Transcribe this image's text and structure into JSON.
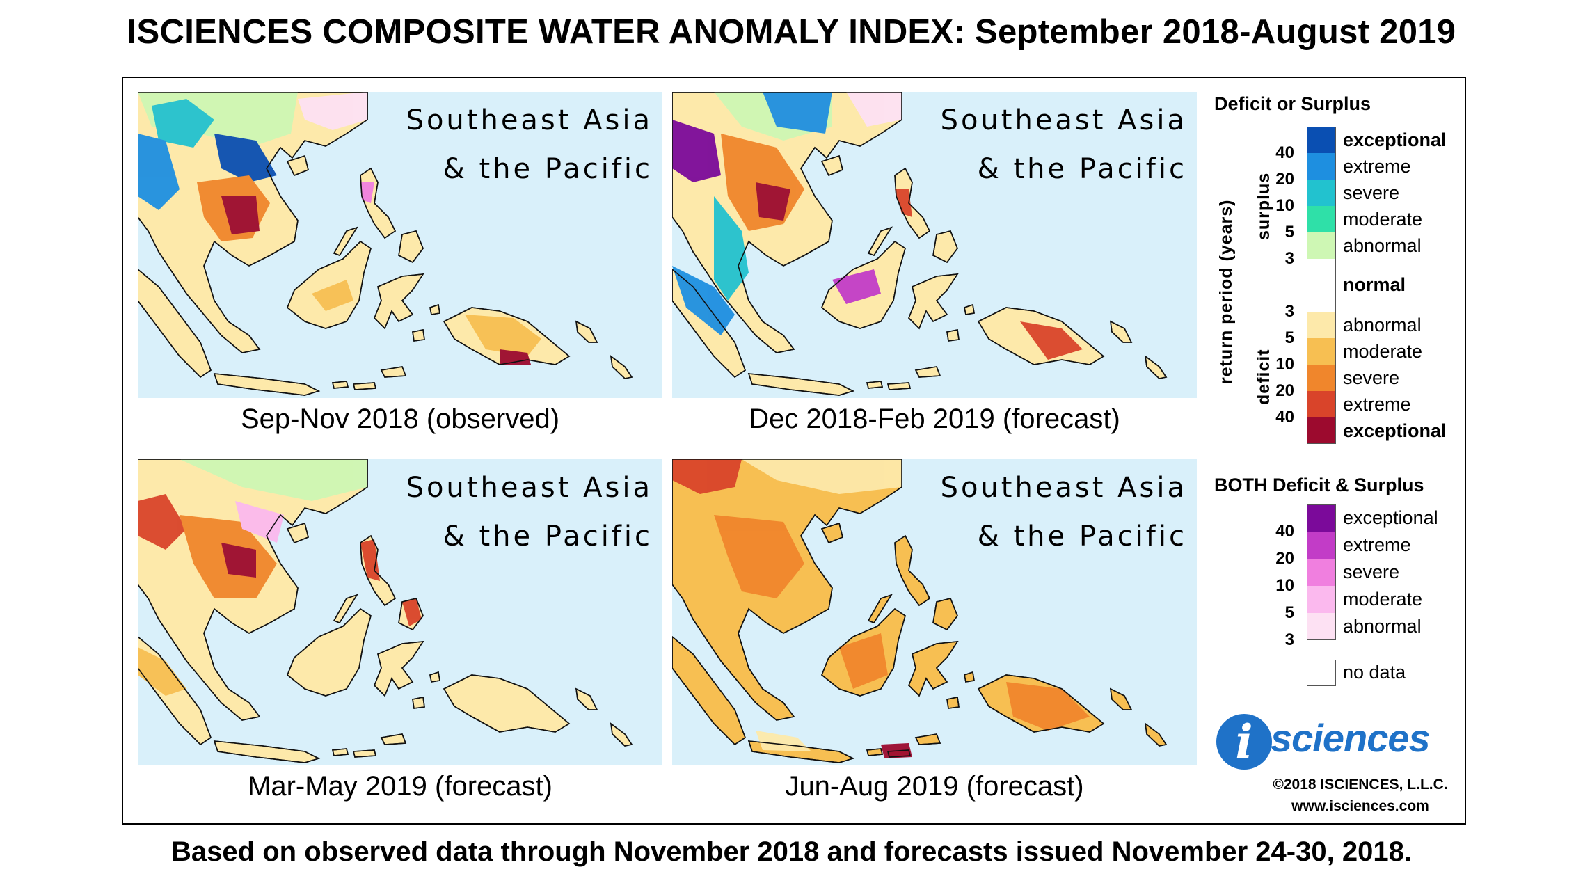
{
  "title": "ISCIENCES COMPOSITE WATER ANOMALY INDEX: September 2018-August 2019",
  "footer": "Based on observed data through November 2018 and forecasts issued November 24-30, 2018.",
  "region_line1": "Southeast Asia",
  "region_line2": "& the Pacific",
  "panels": [
    {
      "caption": "Sep-Nov 2018 (observed)"
    },
    {
      "caption": "Dec 2018-Feb 2019 (forecast)"
    },
    {
      "caption": "Mar-May 2019 (forecast)"
    },
    {
      "caption": "Jun-Aug 2019 (forecast)"
    }
  ],
  "legend": {
    "title_main": "Deficit or Surplus",
    "axis_label": "return period (years)",
    "surplus_label": "surplus",
    "deficit_label": "deficit",
    "surplus": [
      {
        "label": "exceptional",
        "color": "#0a4fb2",
        "bold": true
      },
      {
        "label": "extreme",
        "color": "#1e8fe0"
      },
      {
        "label": "severe",
        "color": "#22c2cf"
      },
      {
        "label": "moderate",
        "color": "#2fe0a8"
      },
      {
        "label": "abnormal",
        "color": "#cef7b4"
      }
    ],
    "normal": {
      "label": "normal",
      "color": "#ffffff"
    },
    "deficit": [
      {
        "label": "abnormal",
        "color": "#fde9aa"
      },
      {
        "label": "moderate",
        "color": "#f7bf52"
      },
      {
        "label": "severe",
        "color": "#f0862c"
      },
      {
        "label": "extreme",
        "color": "#d9442a"
      },
      {
        "label": "exceptional",
        "color": "#9c0a2e",
        "bold": true
      }
    ],
    "surplus_ticks": [
      "40",
      "20",
      "10",
      "5",
      "3"
    ],
    "deficit_ticks": [
      "3",
      "5",
      "10",
      "20",
      "40"
    ],
    "title_both": "BOTH Deficit & Surplus",
    "both": [
      {
        "label": "exceptional",
        "color": "#7b0a9a"
      },
      {
        "label": "extreme",
        "color": "#c23cc7"
      },
      {
        "label": "severe",
        "color": "#f07fdf"
      },
      {
        "label": "moderate",
        "color": "#fbb9ee"
      },
      {
        "label": "abnormal",
        "color": "#fde1f3"
      }
    ],
    "both_ticks": [
      "40",
      "20",
      "10",
      "5",
      "3"
    ],
    "nodata": {
      "label": "no data",
      "color": "#c8c8c8"
    }
  },
  "logo_letter": "i",
  "logo_text": "sciences",
  "copyright": "©2018 ISCIENCES, L.L.C.",
  "website": "www.isciences.com"
}
